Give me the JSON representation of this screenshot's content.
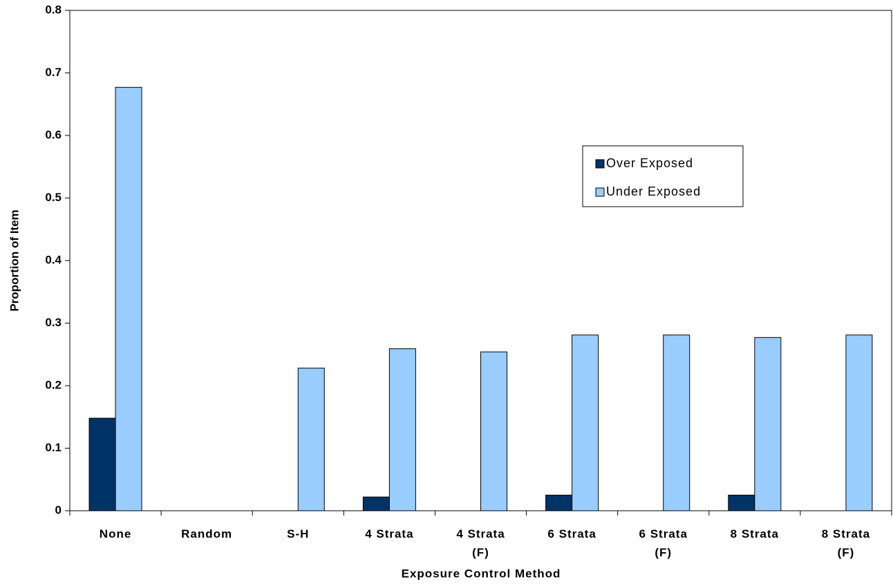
{
  "chart_data": {
    "type": "bar",
    "x_label": "Exposure Control Method",
    "y_label": "Proportion of Item",
    "categories": [
      "None",
      "Random",
      "S-H",
      "4 Strata",
      "4 Strata (F)",
      "6 Strata",
      "6 Strata (F)",
      "8 Strata",
      "8 Strata (F)"
    ],
    "series": [
      {
        "name": "Over Exposed",
        "color": "#003366",
        "values": [
          0.148,
          0,
          0,
          0.022,
          0,
          0.025,
          0,
          0.025,
          0
        ]
      },
      {
        "name": "Under Exposed",
        "color": "#99ccff",
        "values": [
          0.677,
          0,
          0.228,
          0.259,
          0.254,
          0.281,
          0.281,
          0.277,
          0.281
        ]
      }
    ],
    "ylim": [
      0,
      0.8
    ],
    "yticks": [
      0,
      0.1,
      0.2,
      0.3,
      0.4,
      0.5,
      0.6,
      0.7,
      0.8
    ],
    "legend": "upper right"
  }
}
